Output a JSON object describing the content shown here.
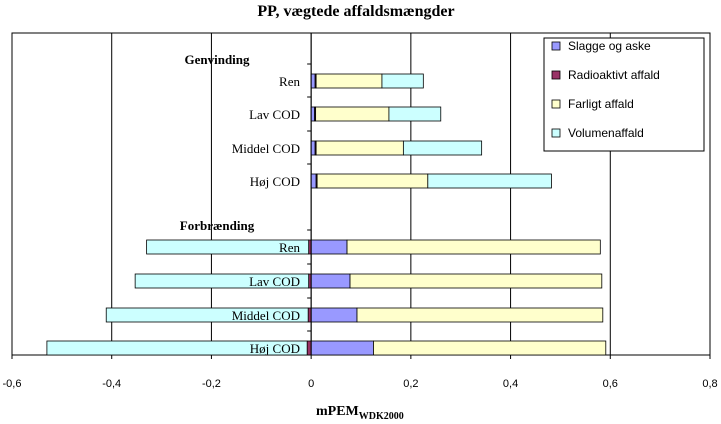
{
  "chart_data": {
    "type": "bar",
    "orientation": "horizontal",
    "stacked": true,
    "title": "PP, vægtede affaldsmængder",
    "xlabel_main": "mPEM",
    "xlabel_sub": "WDK2000",
    "xlim": [
      -0.6,
      0.8
    ],
    "xticks": [
      "-0,6",
      "-0,4",
      "-0,2",
      "0",
      "0,2",
      "0,4",
      "0,6",
      "0,8"
    ],
    "xtick_values": [
      -0.6,
      -0.4,
      -0.2,
      0,
      0.2,
      0.4,
      0.6,
      0.8
    ],
    "grid": "vertical",
    "legend_position": "top-right",
    "groups": [
      {
        "label": "Genvinding",
        "categories": [
          "Ren",
          "Lav COD",
          "Middel COD",
          "Høj COD"
        ]
      },
      {
        "label": "Forbrænding",
        "categories": [
          "Ren",
          "Lav COD",
          "Middel COD",
          "Høj COD"
        ]
      }
    ],
    "series": [
      {
        "name": "Slagge og aske",
        "color": "#9999ff",
        "genvinding": [
          0.008,
          0.007,
          0.008,
          0.01
        ],
        "forbraending": [
          0.072,
          0.078,
          0.092,
          0.125
        ]
      },
      {
        "name": "Radioaktivt affald",
        "color": "#993366",
        "genvinding": [
          0.002,
          0.002,
          0.002,
          0.002
        ],
        "forbraending": [
          -0.005,
          -0.005,
          -0.006,
          -0.008
        ]
      },
      {
        "name": "Farligt affald",
        "color": "#ffffcc",
        "genvinding": [
          0.132,
          0.147,
          0.175,
          0.222
        ],
        "forbraending": [
          0.508,
          0.505,
          0.493,
          0.466
        ]
      },
      {
        "name": "Volumenaffald",
        "color": "#ccffff",
        "genvinding": [
          0.083,
          0.104,
          0.157,
          0.248
        ],
        "forbraending": [
          -0.325,
          -0.348,
          -0.405,
          -0.522
        ]
      }
    ]
  }
}
